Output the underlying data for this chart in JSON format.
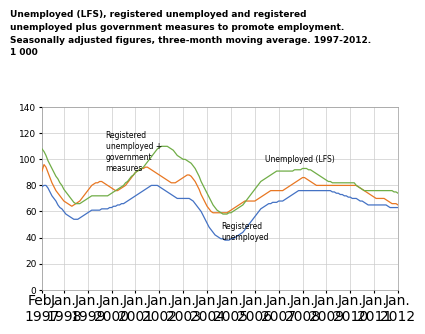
{
  "title_line1": "Unemployed (LFS), registered unemployed and registered",
  "title_line2": "unemployed plus government measures to promote employment.",
  "title_line3": "Seasonally adjusted figures, three-month moving average. 1997-2012.",
  "title_line4": "1 000",
  "ylim": [
    0,
    140
  ],
  "yticks": [
    0,
    20,
    40,
    60,
    80,
    100,
    120,
    140
  ],
  "xtick_labels": [
    "Feb.\n1997",
    "Jan.\n1998",
    "Jan.\n1999",
    "Jan.\n2000",
    "Jan.\n2001",
    "Jan.\n2002",
    "Jan.\n2003",
    "Jan.\n2004",
    "Jan.\n2005",
    "Jan.\n2006",
    "Jan.\n2007",
    "Jan.\n2008",
    "Jan.\n2009",
    "Jan.\n2010",
    "Jan.\n2011",
    "Jan.\n2012"
  ],
  "color_lfs": "#E87722",
  "color_reg": "#4472C4",
  "color_reg_gov": "#70AD47",
  "lfs_label": "Unemployed (LFS)",
  "reg_label": "Registered\nunemployed",
  "reg_gov_label": "Registered\nunemployed +\ngovernment\nmeasures",
  "lfs_data": [
    91,
    96,
    94,
    90,
    86,
    82,
    79,
    76,
    74,
    72,
    70,
    68,
    67,
    66,
    65,
    64,
    65,
    66,
    67,
    68,
    70,
    72,
    74,
    76,
    78,
    80,
    81,
    82,
    82,
    83,
    83,
    82,
    81,
    80,
    79,
    78,
    77,
    76,
    76,
    77,
    78,
    79,
    80,
    82,
    84,
    86,
    88,
    90,
    91,
    92,
    93,
    93,
    94,
    94,
    93,
    92,
    91,
    90,
    89,
    88,
    87,
    86,
    85,
    84,
    83,
    82,
    82,
    82,
    83,
    84,
    85,
    86,
    87,
    88,
    88,
    87,
    85,
    83,
    80,
    77,
    73,
    70,
    67,
    64,
    62,
    60,
    59,
    59,
    59,
    59,
    59,
    59,
    59,
    59,
    60,
    61,
    62,
    63,
    64,
    65,
    66,
    67,
    68,
    68,
    68,
    68,
    68,
    68,
    69,
    70,
    71,
    72,
    73,
    74,
    75,
    76,
    76,
    76,
    76,
    76,
    76,
    76,
    77,
    78,
    79,
    80,
    81,
    82,
    83,
    84,
    85,
    86,
    86,
    85,
    84,
    83,
    82,
    81,
    80,
    80,
    80,
    80,
    80,
    80,
    80,
    80,
    80,
    80,
    80,
    80,
    80,
    80,
    80,
    80,
    80,
    80,
    80,
    80,
    80,
    79,
    78,
    77,
    76,
    75,
    74,
    73,
    72,
    71,
    70,
    70,
    70,
    70,
    70,
    69,
    68,
    67,
    66,
    66,
    66,
    65
  ],
  "reg_data": [
    79,
    80,
    80,
    78,
    75,
    72,
    70,
    68,
    65,
    63,
    62,
    60,
    58,
    57,
    56,
    55,
    54,
    54,
    54,
    55,
    56,
    57,
    58,
    59,
    60,
    61,
    61,
    61,
    61,
    61,
    62,
    62,
    62,
    62,
    63,
    63,
    64,
    64,
    65,
    65,
    66,
    66,
    67,
    68,
    69,
    70,
    71,
    72,
    73,
    74,
    75,
    76,
    77,
    78,
    79,
    80,
    80,
    80,
    80,
    79,
    78,
    77,
    76,
    75,
    74,
    73,
    72,
    71,
    70,
    70,
    70,
    70,
    70,
    70,
    70,
    69,
    68,
    66,
    64,
    62,
    60,
    57,
    54,
    51,
    48,
    46,
    44,
    42,
    41,
    40,
    39,
    39,
    38,
    38,
    38,
    39,
    39,
    40,
    41,
    42,
    43,
    44,
    46,
    48,
    50,
    52,
    54,
    56,
    58,
    60,
    62,
    63,
    64,
    65,
    66,
    66,
    67,
    67,
    67,
    68,
    68,
    68,
    69,
    70,
    71,
    72,
    73,
    74,
    75,
    76,
    76,
    76,
    76,
    76,
    76,
    76,
    76,
    76,
    76,
    76,
    76,
    76,
    76,
    76,
    76,
    76,
    75,
    75,
    74,
    74,
    73,
    73,
    72,
    72,
    71,
    71,
    70,
    70,
    70,
    69,
    68,
    68,
    67,
    66,
    65,
    65,
    65,
    65,
    65,
    65,
    65,
    65,
    65,
    65,
    64,
    63,
    63,
    63,
    63,
    63
  ],
  "reg_gov_data": [
    108,
    106,
    103,
    99,
    96,
    93,
    90,
    87,
    85,
    82,
    80,
    77,
    75,
    73,
    71,
    69,
    67,
    66,
    66,
    66,
    67,
    68,
    69,
    70,
    71,
    72,
    72,
    72,
    72,
    72,
    72,
    72,
    72,
    72,
    73,
    74,
    75,
    76,
    77,
    78,
    79,
    80,
    82,
    83,
    85,
    87,
    88,
    90,
    91,
    92,
    93,
    94,
    96,
    98,
    100,
    102,
    104,
    106,
    108,
    109,
    110,
    110,
    110,
    110,
    109,
    108,
    107,
    105,
    103,
    102,
    101,
    100,
    100,
    99,
    98,
    97,
    95,
    93,
    90,
    87,
    83,
    80,
    77,
    74,
    71,
    68,
    65,
    63,
    61,
    60,
    59,
    58,
    58,
    58,
    59,
    59,
    60,
    61,
    62,
    63,
    64,
    65,
    67,
    69,
    71,
    73,
    75,
    77,
    79,
    81,
    83,
    84,
    85,
    86,
    87,
    88,
    89,
    90,
    91,
    91,
    91,
    91,
    91,
    91,
    91,
    91,
    91,
    92,
    92,
    92,
    92,
    93,
    93,
    93,
    92,
    92,
    91,
    90,
    89,
    88,
    87,
    86,
    85,
    84,
    83,
    83,
    82,
    82,
    82,
    82,
    82,
    82,
    82,
    82,
    82,
    82,
    82,
    82,
    80,
    79,
    78,
    77,
    76,
    76,
    76,
    76,
    76,
    76,
    76,
    76,
    76,
    76,
    76,
    76,
    76,
    76,
    76,
    75,
    75,
    74
  ]
}
